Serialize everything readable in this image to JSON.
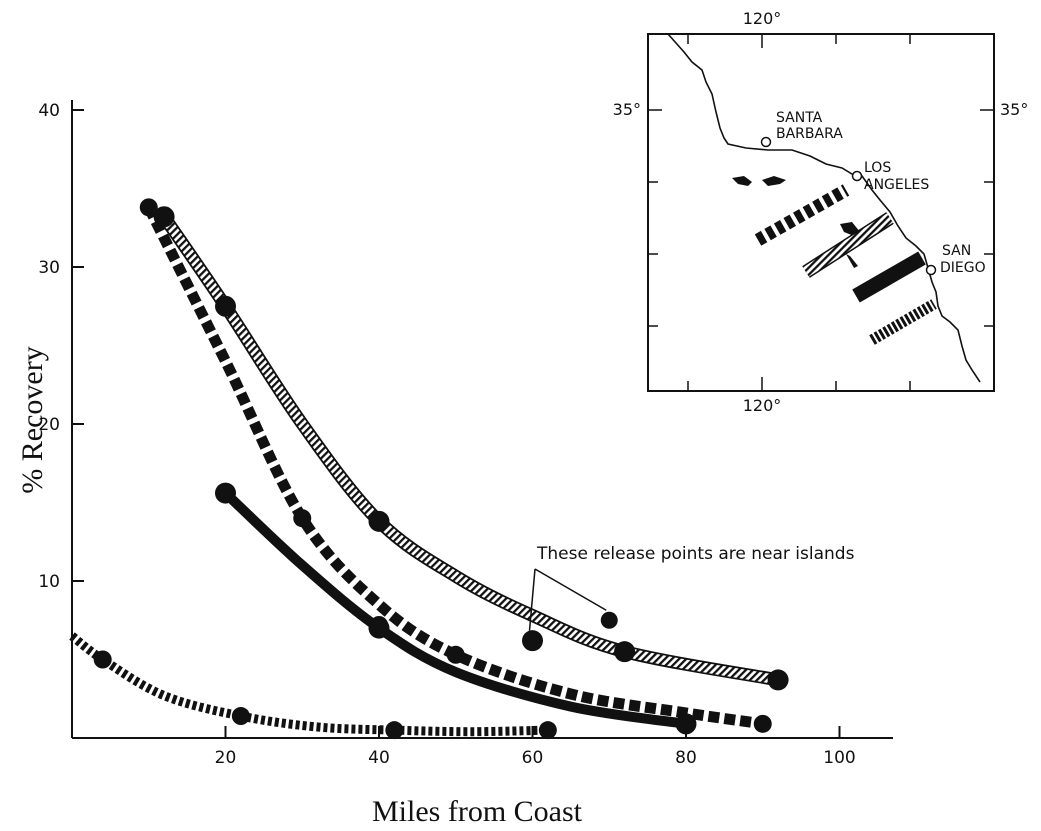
{
  "chart_data": {
    "type": "line",
    "xlabel": "Miles from Coast",
    "ylabel": "% Recovery",
    "xlim": [
      0,
      105
    ],
    "ylim": [
      0,
      40
    ],
    "x_ticks": [
      20,
      40,
      60,
      80,
      100
    ],
    "y_ticks": [
      10,
      20,
      30,
      40
    ],
    "grid": false,
    "legend": "none",
    "series": [
      {
        "style": "hatched",
        "points": [
          [
            12,
            33.2
          ],
          [
            20,
            27.5
          ],
          [
            40,
            13.8
          ],
          [
            60,
            6.2
          ],
          [
            72,
            5.5
          ],
          [
            92,
            3.7
          ]
        ],
        "curve": [
          [
            12,
            33.2
          ],
          [
            20,
            27.5
          ],
          [
            30,
            20
          ],
          [
            40,
            13.8
          ],
          [
            50,
            10.3
          ],
          [
            60,
            7.8
          ],
          [
            72,
            5.5
          ],
          [
            92,
            3.7
          ]
        ]
      },
      {
        "style": "heavy-dashed",
        "points": [
          [
            10,
            33.8
          ],
          [
            20,
            27.5
          ],
          [
            30,
            14
          ],
          [
            40,
            7.2
          ],
          [
            50,
            5.3
          ],
          [
            80,
            0.9
          ],
          [
            90,
            0.9
          ]
        ],
        "curve": [
          [
            10,
            33.8
          ],
          [
            20,
            24
          ],
          [
            30,
            14
          ],
          [
            40,
            8.5
          ],
          [
            50,
            5.3
          ],
          [
            65,
            2.8
          ],
          [
            80,
            1.6
          ],
          [
            90,
            0.9
          ]
        ]
      },
      {
        "style": "solid",
        "points": [
          [
            20,
            15.6
          ],
          [
            40,
            7.0
          ],
          [
            80,
            0.9
          ]
        ],
        "curve": [
          [
            20,
            15.6
          ],
          [
            30,
            11
          ],
          [
            40,
            7.0
          ],
          [
            50,
            4.2
          ],
          [
            65,
            2.0
          ],
          [
            80,
            0.9
          ]
        ]
      },
      {
        "style": "fine-dashed",
        "points": [
          [
            4,
            5.0
          ],
          [
            22,
            1.4
          ],
          [
            42,
            0.5
          ],
          [
            62,
            0.5
          ]
        ],
        "curve": [
          [
            0,
            6.5
          ],
          [
            4,
            5.0
          ],
          [
            12,
            2.7
          ],
          [
            22,
            1.4
          ],
          [
            32,
            0.7
          ],
          [
            42,
            0.5
          ],
          [
            52,
            0.4
          ],
          [
            62,
            0.5
          ]
        ]
      }
    ],
    "isolated_points": [
      [
        70,
        7.5
      ]
    ],
    "annotations": [
      {
        "text": "These release points are near islands",
        "pointers": [
          [
            60,
            6.2
          ],
          [
            70,
            7.5
          ]
        ]
      }
    ]
  },
  "inset_map": {
    "longitude_label_top": "120°",
    "longitude_label_bottom": "120°",
    "latitude_label_left": "35°",
    "latitude_label_right": "35°",
    "places": [
      {
        "line1": "SANTA",
        "line2": "BARBARA"
      },
      {
        "line1": "LOS",
        "line2": "ANGELES"
      },
      {
        "line1": "SAN",
        "line2": "DIEGO"
      }
    ]
  }
}
